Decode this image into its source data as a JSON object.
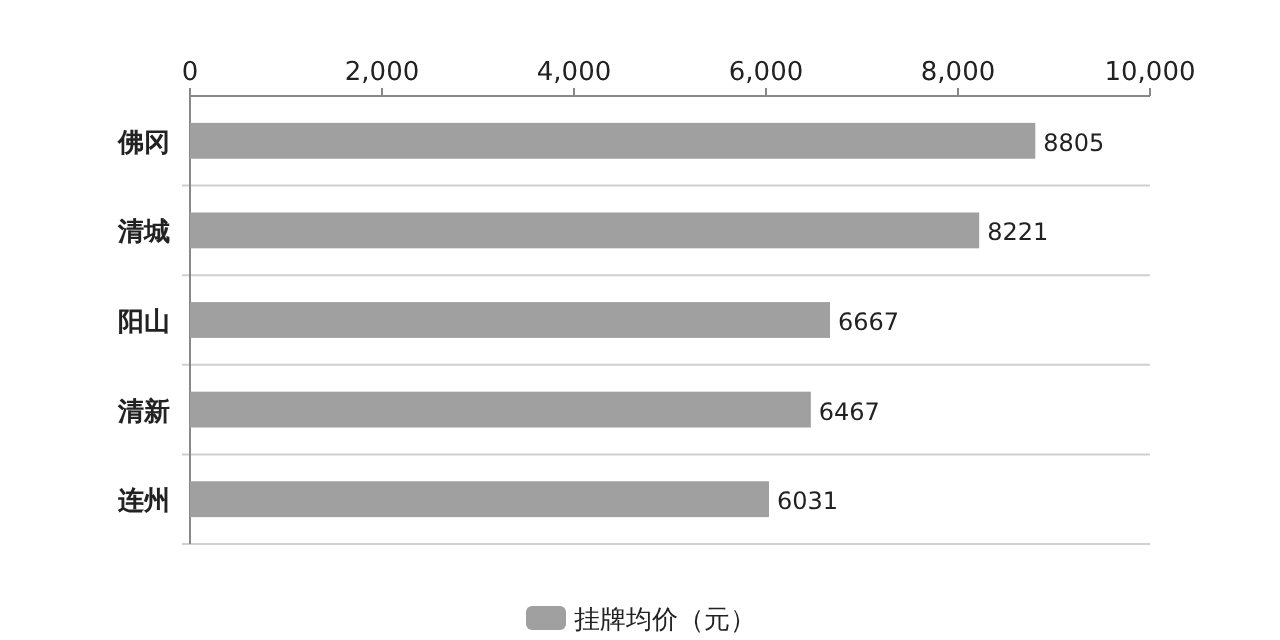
{
  "chart_data": {
    "type": "bar",
    "orientation": "horizontal",
    "categories": [
      "佛冈",
      "清城",
      "阳山",
      "清新",
      "连州"
    ],
    "series": [
      {
        "name": "挂牌均价（元）",
        "color": "#a0a0a0",
        "values": [
          8805,
          8221,
          6667,
          6467,
          6031
        ]
      }
    ],
    "xlim": [
      0,
      10000
    ],
    "xticks": [
      {
        "value": 0,
        "label": "0"
      },
      {
        "value": 2000,
        "label": "2,000"
      },
      {
        "value": 4000,
        "label": "4,000"
      },
      {
        "value": 6000,
        "label": "6,000"
      },
      {
        "value": 8000,
        "label": "8,000"
      },
      {
        "value": 10000,
        "label": "10,000"
      }
    ],
    "data_labels": true,
    "grid": "y",
    "legend": "bottom"
  }
}
